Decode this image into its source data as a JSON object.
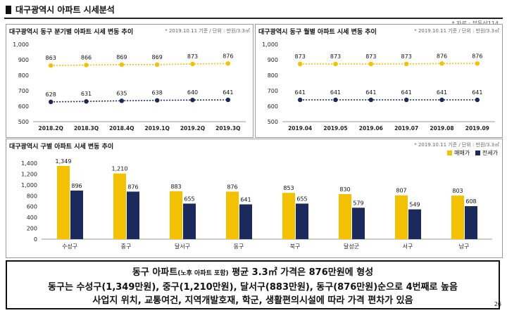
{
  "page_title": "대구광역시 아파트 시세분석",
  "source": "* 자료 : 부동산114",
  "page_number": "26",
  "charts": {
    "quarterly": {
      "title": "대구광역시 동구 분기별 아파트 시세 변동 추이",
      "note": "* 2019.10.11 기준 / 단위 : 만원/3.3㎡",
      "yticks": [
        "1,000",
        "900",
        "800",
        "700",
        "600",
        "500"
      ]
    },
    "monthly": {
      "title": "대구광역시 동구 월별 아파트 시세 변동 추이",
      "note": "* 2019.10.11 기준 / 단위 : 만원/3.3㎡",
      "yticks": [
        "1,000",
        "900",
        "800",
        "700",
        "600",
        "500"
      ]
    },
    "district": {
      "title": "대구광역시 구별 아파트 시세 변동 추이",
      "note": "* 2019.10.11 기준 / 단위 : 만원/3.3㎡",
      "yticks": [
        "1,400",
        "1,200",
        "1,000",
        "800",
        "600",
        "400",
        "200",
        "0"
      ]
    }
  },
  "chart_data": [
    {
      "type": "line",
      "title": "대구광역시 동구 분기별 아파트 시세 변동 추이",
      "categories": [
        "2018.2Q",
        "2018.3Q",
        "2018.4Q",
        "2019.1Q",
        "2019.2Q",
        "2019.3Q"
      ],
      "series": [
        {
          "values": [
            863,
            866,
            869,
            869,
            873,
            876
          ],
          "color": "#F2C200"
        },
        {
          "values": [
            628,
            631,
            635,
            638,
            640,
            641
          ],
          "color": "#1B2A5A"
        }
      ],
      "data_labels": [
        [
          "863",
          "866",
          "869",
          "869",
          "873",
          "876"
        ],
        [
          "628",
          "631",
          "635",
          "638",
          "640",
          "641"
        ]
      ],
      "ylim": [
        500,
        1000
      ],
      "grid": false
    },
    {
      "type": "line",
      "title": "대구광역시 동구 월별 아파트 시세 변동 추이",
      "categories": [
        "2019.04",
        "2019.05",
        "2019.06",
        "2019.07",
        "2019.08",
        "2019.09"
      ],
      "series": [
        {
          "values": [
            873,
            873,
            873,
            873,
            876,
            876
          ],
          "color": "#F2C200"
        },
        {
          "values": [
            641,
            641,
            641,
            641,
            641,
            641
          ],
          "color": "#1B2A5A"
        }
      ],
      "data_labels": [
        [
          "873",
          "873",
          "873",
          "873",
          "876",
          "876"
        ],
        [
          "641",
          "641",
          "641",
          "641",
          "641",
          "641"
        ]
      ],
      "ylim": [
        500,
        1000
      ],
      "grid": false
    },
    {
      "type": "bar",
      "title": "대구광역시 구별 아파트 시세 변동 추이",
      "categories": [
        "수성구",
        "중구",
        "달서구",
        "동구",
        "북구",
        "달성군",
        "서구",
        "남구"
      ],
      "series": [
        {
          "name": "매매가",
          "values": [
            1349,
            1210,
            883,
            876,
            853,
            830,
            807,
            803
          ],
          "color": "#F2C200"
        },
        {
          "name": "전세가",
          "values": [
            896,
            876,
            655,
            641,
            655,
            579,
            549,
            608
          ],
          "color": "#1B2A5A"
        }
      ],
      "data_labels": [
        [
          "1,349",
          "1,210",
          "883",
          "876",
          "853",
          "830",
          "807",
          "803"
        ],
        [
          "896",
          "876",
          "655",
          "641",
          "655",
          "579",
          "549",
          "608"
        ]
      ],
      "ylim": [
        0,
        1400
      ],
      "legend": "top-right",
      "grid": false
    }
  ],
  "footer": {
    "line1_a": "동구 아파트",
    "line1_small": "(노후 아파트 포함)",
    "line1_b": " 평균 3.3㎡ 가격은 876만원에 형성",
    "line2": "동구는 수성구(1,349만원), 중구(1,210만원), 달서구(883만원), 동구(876만원)순으로 4번째로 높음",
    "line3": "사업지 위치, 교통여건, 지역개발호재, 학군, 생활편의시설에 따라 가격 편차가 있음"
  }
}
